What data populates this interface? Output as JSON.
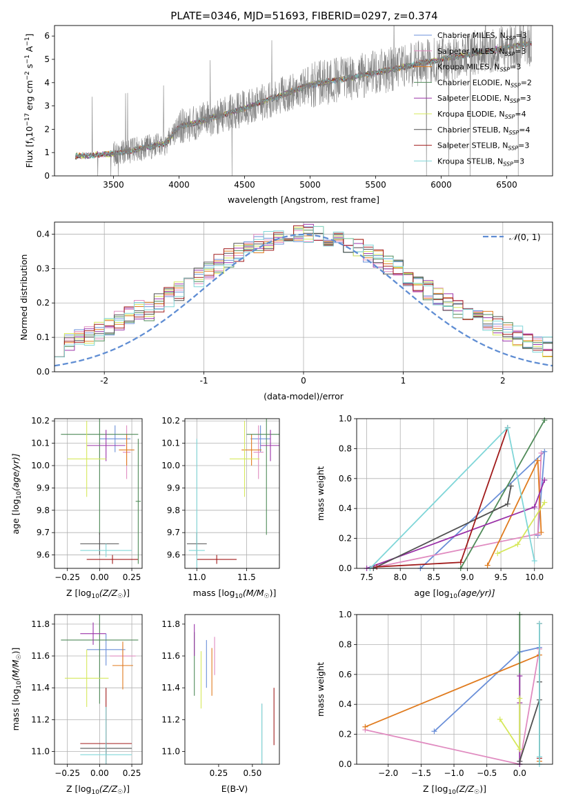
{
  "figure_title": "PLATE=0346, MJD=51693, FIBERID=0297, z=0.374",
  "models": [
    {
      "name": "Chabrier MILES",
      "nssp": "3",
      "color": "#6a8fd8"
    },
    {
      "name": "Salpeter MILES",
      "nssp": "3",
      "color": "#e08bc0"
    },
    {
      "name": "Kroupa MILES",
      "nssp": "3",
      "color": "#e07b1e"
    },
    {
      "name": "Chabrier ELODIE",
      "nssp": "2",
      "color": "#4f8a58"
    },
    {
      "name": "Salpeter ELODIE",
      "nssp": "3",
      "color": "#9a32a8"
    },
    {
      "name": "Kroupa ELODIE",
      "nssp": "4",
      "color": "#d6e85a"
    },
    {
      "name": "Chabrier STELIB",
      "nssp": "4",
      "color": "#505050"
    },
    {
      "name": "Salpeter STELIB",
      "nssp": "3",
      "color": "#a01a1a"
    },
    {
      "name": "Kroupa STELIB",
      "nssp": "3",
      "color": "#7fd6d8"
    }
  ],
  "chart_data": [
    {
      "id": "spectrum",
      "type": "line",
      "xlabel": "wavelength [Angstrom, rest frame]",
      "ylabel_prefix": "Flux [f",
      "ylabel_lambda": "λ",
      "ylabel_rest": "10",
      "ylabel_exp": "−17",
      "ylabel_units": " erg cm",
      "ylabel_units2": " s",
      "ylabel_units3": " A",
      "ylabel_close": "]",
      "xlim": [
        3050,
        6850
      ],
      "ylim": [
        0,
        6.45
      ],
      "xticks": [
        3500,
        4000,
        4500,
        5000,
        5500,
        6000,
        6500
      ],
      "yticks": [
        0,
        1,
        2,
        3,
        4,
        5,
        6
      ],
      "grid": false,
      "legend_position": "top-right",
      "data_range": [
        3210,
        6690
      ],
      "continuum": [
        [
          3210,
          0.85
        ],
        [
          3500,
          0.95
        ],
        [
          3700,
          1.15
        ],
        [
          3900,
          1.4
        ],
        [
          4000,
          2.1
        ],
        [
          4200,
          2.4
        ],
        [
          4500,
          2.9
        ],
        [
          4800,
          3.5
        ],
        [
          5000,
          3.9
        ],
        [
          5300,
          4.2
        ],
        [
          5600,
          4.55
        ],
        [
          6000,
          5.0
        ],
        [
          6400,
          5.4
        ],
        [
          6690,
          5.7
        ]
      ]
    },
    {
      "id": "residuals",
      "type": "line",
      "xlabel": "(data-model)/error",
      "ylabel": "Normed distribution",
      "xlim": [
        -2.5,
        2.5
      ],
      "ylim": [
        0,
        0.435
      ],
      "xticks": [
        -2,
        -1,
        0,
        1,
        2
      ],
      "yticks": [
        0.0,
        0.1,
        0.2,
        0.3,
        0.4
      ],
      "grid": true,
      "legend_position": "top-right",
      "legend_label": "(0, 1)",
      "legend_symbol": "𝒩",
      "bin_width": 0.1,
      "base_curve": "normal"
    },
    {
      "id": "age_vs_Z",
      "type": "scatter",
      "xlabel_pre": "Z [log",
      "xlabel_sub": "10",
      "xlabel_post": "(Z/Z",
      "xlabel_sun": "☉",
      "xlabel_end": ")]",
      "ylabel": "age  [log",
      "ylabel_sub": "10",
      "ylabel_post": "(age/yr)]",
      "xlim": [
        -0.35,
        0.33
      ],
      "ylim": [
        9.54,
        10.21
      ],
      "xticks": [
        -0.25,
        0.0,
        0.25
      ],
      "xticklabels": [
        "−0.25",
        "0.00",
        "0.25"
      ],
      "yticks": [
        9.6,
        9.7,
        9.8,
        9.9,
        10.0,
        10.1,
        10.2
      ],
      "grid": true,
      "points": [
        {
          "m": 0,
          "x": 0.12,
          "y": 10.12,
          "xe": 0.12,
          "ye": 0.06
        },
        {
          "m": 1,
          "x": 0.21,
          "y": 10.06,
          "xe": 0.03,
          "ye": 0.12
        },
        {
          "m": 2,
          "x": 0.21,
          "y": 10.07,
          "xe": 0.06,
          "ye": 0.07
        },
        {
          "m": 3,
          "x": 0.0,
          "y": 10.14,
          "xe": 0.3,
          "ye": 0.45
        },
        {
          "m": 4,
          "x": 0.05,
          "y": 10.09,
          "xe": 0.15,
          "ye": 0.07
        },
        {
          "m": 5,
          "x": -0.1,
          "y": 10.03,
          "xe": 0.15,
          "ye": 0.17
        },
        {
          "m": 6,
          "x": 0.0,
          "y": 9.65,
          "xe": 0.15,
          "ye": 0.05
        },
        {
          "m": 7,
          "x": 0.1,
          "y": 9.58,
          "xe": 0.2,
          "ye": 0.02
        },
        {
          "m": 8,
          "x": 0.05,
          "y": 9.62,
          "xe": 0.2,
          "ye": 0.03
        },
        {
          "m": 3,
          "x": 0.3,
          "y": 9.84,
          "xe": 0.02,
          "ye": 0.28
        }
      ]
    },
    {
      "id": "age_vs_mass",
      "type": "scatter",
      "xlabel_pre": "mass [log",
      "xlabel_sub": "10",
      "xlabel_post": "(M/M",
      "xlabel_sun": "☉",
      "xlabel_end": ")]",
      "xlim": [
        10.88,
        11.83
      ],
      "ylim": [
        9.54,
        10.21
      ],
      "xticks": [
        11.0,
        11.5
      ],
      "xticklabels": [
        "11.0",
        "11.5"
      ],
      "yticks": [
        9.6,
        9.7,
        9.8,
        9.9,
        10.0,
        10.1,
        10.2
      ],
      "grid": true,
      "points": [
        {
          "m": 0,
          "x": 11.64,
          "y": 10.12,
          "xe": 0.1,
          "ye": 0.06
        },
        {
          "m": 1,
          "x": 11.62,
          "y": 10.06,
          "xe": 0.05,
          "ye": 0.12
        },
        {
          "m": 2,
          "x": 11.55,
          "y": 10.07,
          "xe": 0.1,
          "ye": 0.07
        },
        {
          "m": 3,
          "x": 11.7,
          "y": 10.14,
          "xe": 0.2,
          "ye": 0.45
        },
        {
          "m": 4,
          "x": 11.74,
          "y": 10.09,
          "xe": 0.1,
          "ye": 0.07
        },
        {
          "m": 5,
          "x": 11.48,
          "y": 10.03,
          "xe": 0.15,
          "ye": 0.17
        },
        {
          "m": 6,
          "x": 11.0,
          "y": 9.65,
          "xe": 0.1,
          "ye": 0.05
        },
        {
          "m": 7,
          "x": 11.2,
          "y": 9.58,
          "xe": 0.2,
          "ye": 0.02
        },
        {
          "m": 8,
          "x": 11.0,
          "y": 9.62,
          "xe": 0.08,
          "ye": 0.5
        }
      ]
    },
    {
      "id": "weight_vs_age",
      "type": "line",
      "xlabel": "age  [log",
      "xlabel_sub": "10",
      "xlabel_post": "(age/yr)]",
      "ylabel": "mass weight",
      "xlim": [
        7.35,
        10.27
      ],
      "ylim": [
        0,
        1.0
      ],
      "xticks": [
        7.5,
        8.0,
        8.5,
        9.0,
        9.5,
        10.0
      ],
      "xticklabels": [
        "7.5",
        "8.0",
        "8.5",
        "9.0",
        "9.5",
        "10.0"
      ],
      "yticks": [
        0.0,
        0.2,
        0.4,
        0.6,
        0.8,
        1.0
      ],
      "grid": true,
      "series": [
        {
          "m": 0,
          "x": [
            8.3,
            10.15,
            10.05
          ],
          "y": [
            0.0,
            0.78,
            0.22
          ]
        },
        {
          "m": 1,
          "x": [
            7.55,
            10.05,
            10.1
          ],
          "y": [
            0.0,
            0.23,
            0.77
          ]
        },
        {
          "m": 2,
          "x": [
            9.3,
            10.05,
            10.1
          ],
          "y": [
            0.02,
            0.72,
            0.24
          ]
        },
        {
          "m": 3,
          "x": [
            8.9,
            10.15
          ],
          "y": [
            0.0,
            0.99
          ]
        },
        {
          "m": 4,
          "x": [
            7.5,
            10.0,
            10.15
          ],
          "y": [
            0.0,
            0.41,
            0.59
          ]
        },
        {
          "m": 5,
          "x": [
            9.45,
            9.75,
            10.15
          ],
          "y": [
            0.1,
            0.16,
            0.44
          ]
        },
        {
          "m": 6,
          "x": [
            7.6,
            9.6,
            9.65
          ],
          "y": [
            0.0,
            0.43,
            0.55
          ]
        },
        {
          "m": 7,
          "x": [
            7.65,
            8.9,
            9.6
          ],
          "y": [
            0.01,
            0.04,
            0.94
          ]
        },
        {
          "m": 8,
          "x": [
            7.55,
            9.6,
            10.0
          ],
          "y": [
            0.0,
            0.94,
            0.05
          ]
        }
      ]
    },
    {
      "id": "mass_vs_Z",
      "type": "scatter",
      "xlabel_pre": "Z [log",
      "xlabel_sub": "10",
      "xlabel_post": "(Z/Z",
      "xlabel_sun": "☉",
      "xlabel_end": ")]",
      "ylabel": "mass [log",
      "ylabel_sub": "10",
      "ylabel_post": "(M/M",
      "ylabel_sun": "☉",
      "ylabel_end": ")]",
      "xlim": [
        -0.35,
        0.33
      ],
      "ylim": [
        10.92,
        11.86
      ],
      "xticks": [
        -0.25,
        0.0,
        0.25
      ],
      "xticklabels": [
        "−0.25",
        "0.00",
        "0.25"
      ],
      "yticks": [
        11.0,
        11.2,
        11.4,
        11.6,
        11.8
      ],
      "grid": true,
      "points": [
        {
          "m": 0,
          "x": 0.05,
          "y": 11.64,
          "xe": 0.15,
          "ye": 0.1
        },
        {
          "m": 1,
          "x": 0.18,
          "y": 11.6,
          "xe": 0.1,
          "ye": 0.07
        },
        {
          "m": 2,
          "x": 0.18,
          "y": 11.54,
          "xe": 0.08,
          "ye": 0.15
        },
        {
          "m": 3,
          "x": 0.0,
          "y": 11.7,
          "xe": 0.3,
          "ye": 0.4
        },
        {
          "m": 4,
          "x": -0.05,
          "y": 11.74,
          "xe": 0.1,
          "ye": 0.07
        },
        {
          "m": 5,
          "x": -0.1,
          "y": 11.46,
          "xe": 0.17,
          "ye": 0.18
        },
        {
          "m": 6,
          "x": 0.05,
          "y": 11.02,
          "xe": 0.2,
          "ye": 0.04
        },
        {
          "m": 7,
          "x": 0.05,
          "y": 11.05,
          "xe": 0.2,
          "ye": 0.35
        },
        {
          "m": 8,
          "x": 0.05,
          "y": 10.98,
          "xe": 0.2,
          "ye": 0.3
        }
      ]
    },
    {
      "id": "mass_vs_EBV",
      "type": "scatter",
      "xlabel": "E(B-V)",
      "xlim": [
        0.0,
        0.7
      ],
      "ylim": [
        10.92,
        11.86
      ],
      "xticks": [
        0.25,
        0.5
      ],
      "xticklabels": [
        "0.25",
        "0.50"
      ],
      "yticks": [
        11.0,
        11.2,
        11.4,
        11.6,
        11.8
      ],
      "grid": false,
      "points": [
        {
          "m": 0,
          "x": 0.16,
          "y": 11.55,
          "xe": 0,
          "ye": 0.15
        },
        {
          "m": 1,
          "x": 0.22,
          "y": 11.6,
          "xe": 0,
          "ye": 0.12
        },
        {
          "m": 2,
          "x": 0.2,
          "y": 11.5,
          "xe": 0,
          "ye": 0.15
        },
        {
          "m": 3,
          "x": 0.07,
          "y": 11.55,
          "xe": 0,
          "ye": 0.2
        },
        {
          "m": 4,
          "x": 0.07,
          "y": 11.7,
          "xe": 0,
          "ye": 0.1
        },
        {
          "m": 5,
          "x": 0.12,
          "y": 11.45,
          "xe": 0,
          "ye": 0.18
        },
        {
          "m": 6,
          "x": 0.57,
          "y": 11.1,
          "xe": 0,
          "ye": 0.2
        },
        {
          "m": 7,
          "x": 0.66,
          "y": 11.22,
          "xe": 0,
          "ye": 0.18
        },
        {
          "m": 8,
          "x": 0.57,
          "y": 11.0,
          "xe": 0,
          "ye": 0.3
        }
      ]
    },
    {
      "id": "weight_vs_Z",
      "type": "line",
      "xlabel_pre": "Z [log",
      "xlabel_sub": "10",
      "xlabel_post": "(Z/Z",
      "xlabel_sun": "☉",
      "xlabel_end": ")]",
      "ylabel": "mass weight",
      "xlim": [
        -2.48,
        0.5
      ],
      "ylim": [
        0,
        1.0
      ],
      "xticks": [
        -2.0,
        -1.5,
        -1.0,
        -0.5,
        0.0
      ],
      "xticklabels": [
        "−2.0",
        "−1.5",
        "−1.0",
        "−0.5",
        "0.0"
      ],
      "yticks": [
        0.0,
        0.2,
        0.4,
        0.6,
        0.8,
        1.0
      ],
      "grid": true,
      "series": [
        {
          "m": 0,
          "x": [
            -1.3,
            0.0,
            0.3
          ],
          "y": [
            0.22,
            0.75,
            0.78
          ]
        },
        {
          "m": 1,
          "x": [
            -2.35,
            0.0,
            0.3
          ],
          "y": [
            0.23,
            0.0,
            0.77
          ]
        },
        {
          "m": 2,
          "x": [
            -2.35,
            0.3,
            0.3
          ],
          "y": [
            0.25,
            0.73,
            0.02
          ]
        },
        {
          "m": 3,
          "x": [
            0.0,
            0.0
          ],
          "y": [
            0.0,
            1.0
          ]
        },
        {
          "m": 4,
          "x": [
            0.0,
            0.0,
            0.0
          ],
          "y": [
            0.0,
            0.41,
            0.59
          ]
        },
        {
          "m": 5,
          "x": [
            -0.3,
            0.0,
            0.0
          ],
          "y": [
            0.3,
            0.1,
            0.44
          ]
        },
        {
          "m": 6,
          "x": [
            0.0,
            0.3,
            0.3
          ],
          "y": [
            0.02,
            0.43,
            0.55
          ]
        },
        {
          "m": 7,
          "x": [
            0.3,
            0.3
          ],
          "y": [
            0.04,
            0.94
          ]
        },
        {
          "m": 8,
          "x": [
            0.3,
            0.3,
            0.3
          ],
          "y": [
            0.0,
            0.94,
            0.05
          ]
        }
      ]
    }
  ]
}
